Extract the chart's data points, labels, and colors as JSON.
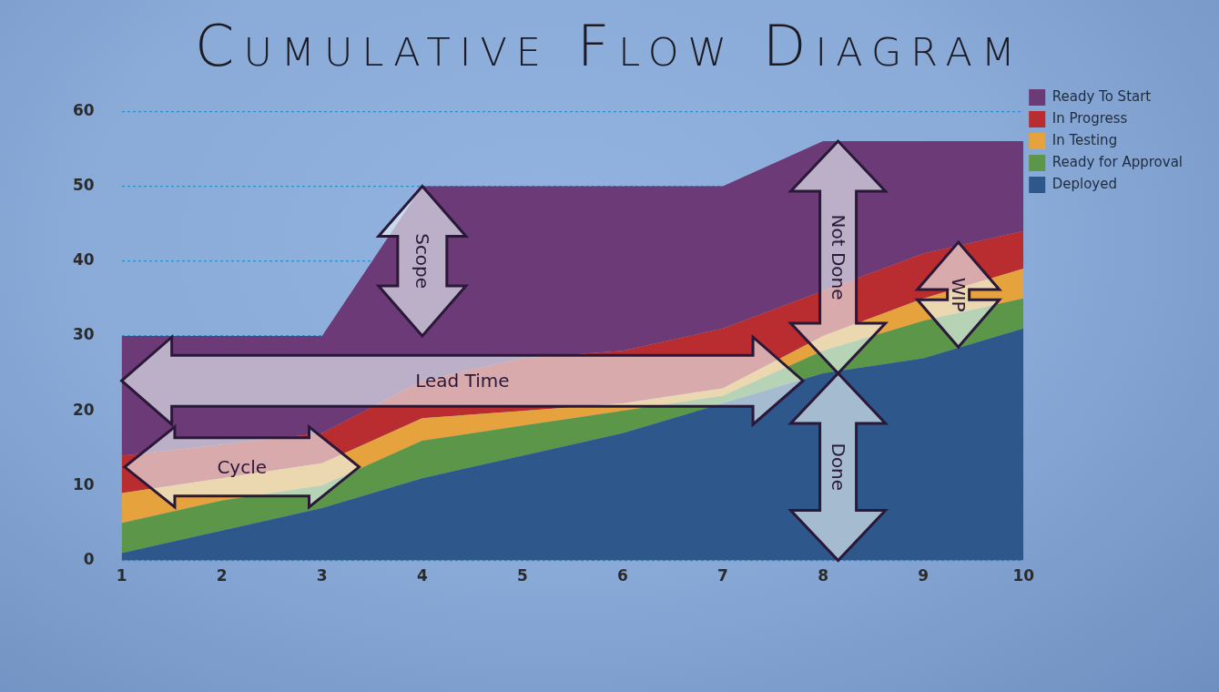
{
  "chart_data": {
    "type": "area",
    "title": "Cumulative Flow Diagram",
    "stacked": true,
    "x": [
      1,
      2,
      3,
      4,
      5,
      6,
      7,
      8,
      9,
      10
    ],
    "xlim": [
      1,
      10
    ],
    "xticks": [
      1,
      2,
      3,
      4,
      5,
      6,
      7,
      8,
      9,
      10
    ],
    "ylim": [
      0,
      60
    ],
    "yticks": [
      0,
      10,
      20,
      30,
      40,
      50,
      60
    ],
    "grid": "y",
    "legend": "top right",
    "series": [
      {
        "name": "Deployed",
        "color": "#2e578b",
        "values": [
          1,
          4,
          7,
          11,
          14,
          17,
          21,
          25,
          27,
          31
        ]
      },
      {
        "name": "Ready for Approval",
        "color": "#5c9648",
        "values": [
          4,
          4,
          3,
          5,
          4,
          3,
          1,
          3,
          5,
          4
        ]
      },
      {
        "name": "In Testing",
        "color": "#e6a23c",
        "values": [
          4,
          3,
          3,
          3,
          2,
          1,
          1,
          2,
          3,
          4
        ]
      },
      {
        "name": "In Progress",
        "color": "#b92c2f",
        "values": [
          5,
          4.5,
          4,
          5,
          7,
          7,
          8,
          6,
          6,
          5
        ]
      },
      {
        "name": "Ready To Start",
        "color": "#6d3a78",
        "values": [
          16,
          14.5,
          13,
          26,
          23,
          22,
          19,
          20,
          15,
          12
        ]
      }
    ],
    "annotations": [
      "Scope",
      "Lead Time",
      "Cycle",
      "Not Done",
      "Done",
      "WIP"
    ]
  }
}
